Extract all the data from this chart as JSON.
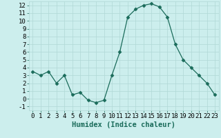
{
  "x": [
    0,
    1,
    2,
    3,
    4,
    5,
    6,
    7,
    8,
    9,
    10,
    11,
    12,
    13,
    14,
    15,
    16,
    17,
    18,
    19,
    20,
    21,
    22,
    23
  ],
  "y": [
    3.5,
    3.0,
    3.5,
    2.0,
    3.0,
    0.5,
    0.8,
    -0.2,
    -0.5,
    -0.2,
    3.0,
    6.0,
    10.5,
    11.5,
    12.0,
    12.2,
    11.8,
    10.5,
    7.0,
    5.0,
    4.0,
    3.0,
    2.0,
    0.5
  ],
  "line_color": "#1a6b5a",
  "marker": "D",
  "marker_size": 2.5,
  "bg_color": "#cceeed",
  "grid_color": "#b0d8d5",
  "xlabel": "Humidex (Indice chaleur)",
  "xlabel_fontsize": 7.5,
  "xlim": [
    -0.5,
    23.5
  ],
  "ylim": [
    -1.5,
    12.5
  ],
  "yticks": [
    -1,
    0,
    1,
    2,
    3,
    4,
    5,
    6,
    7,
    8,
    9,
    10,
    11,
    12
  ],
  "xticks": [
    0,
    1,
    2,
    3,
    4,
    5,
    6,
    7,
    8,
    9,
    10,
    11,
    12,
    13,
    14,
    15,
    16,
    17,
    18,
    19,
    20,
    21,
    22,
    23
  ],
  "tick_fontsize": 6.5
}
